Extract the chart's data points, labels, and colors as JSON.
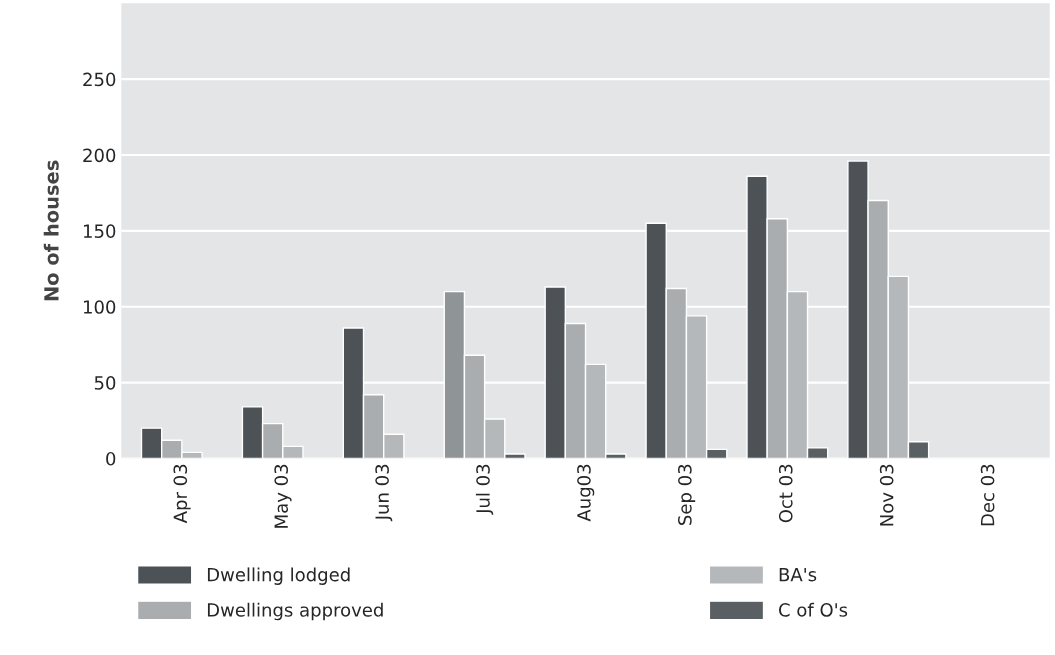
{
  "chart_data": {
    "type": "bar",
    "ylabel": "No of houses",
    "categories": [
      "Apr 03",
      "May 03",
      "Jun 03",
      "Jul 03",
      "Aug03",
      "Sep 03",
      "Oct 03",
      "Nov 03",
      "Dec 03"
    ],
    "series": [
      {
        "name": "Dwelling lodged",
        "color": "#4d5257",
        "colors": [
          "#4d5257",
          "#4d5257",
          "#4d5257",
          "#8f9497",
          "#4d5257",
          "#4d5257",
          "#4d5257",
          "#4d5257",
          "#4d5257"
        ],
        "values": [
          20,
          34,
          86,
          110,
          113,
          155,
          186,
          196,
          null
        ]
      },
      {
        "name": "Dwellings approved",
        "color": "#a9adb0",
        "values": [
          12,
          23,
          42,
          68,
          89,
          112,
          158,
          170,
          null
        ]
      },
      {
        "name": "BA's",
        "color": "#b5b8bb",
        "values": [
          4,
          8,
          16,
          26,
          62,
          94,
          110,
          120,
          null
        ]
      },
      {
        "name": "C of O's",
        "color": "#5a5f63",
        "values": [
          null,
          null,
          null,
          3,
          3,
          6,
          7,
          11,
          null
        ]
      }
    ],
    "ylim": [
      0,
      300
    ],
    "yticks": [
      0,
      50,
      100,
      150,
      200,
      250
    ],
    "grid": "y",
    "legend": "bottom"
  }
}
